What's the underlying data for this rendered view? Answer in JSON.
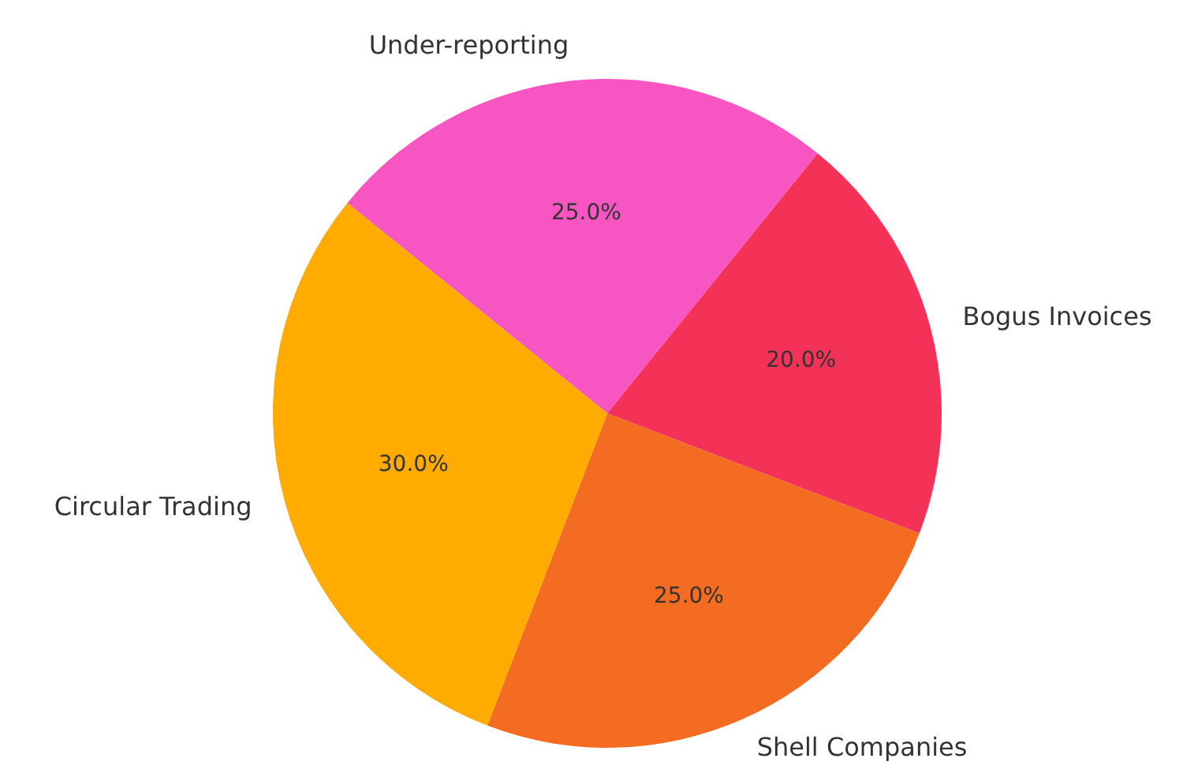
{
  "chart_data": {
    "type": "pie",
    "categories": [
      "Under-reporting",
      "Bogus Invoices",
      "Shell Companies",
      "Circular Trading"
    ],
    "values": [
      25,
      20,
      25,
      30
    ],
    "colors": [
      "#f755c1",
      "#f43258",
      "#f36c22",
      "#ffab00"
    ],
    "value_labels": [
      "25.0%",
      "20.0%",
      "25.0%",
      "30.0%"
    ],
    "legend": false
  }
}
